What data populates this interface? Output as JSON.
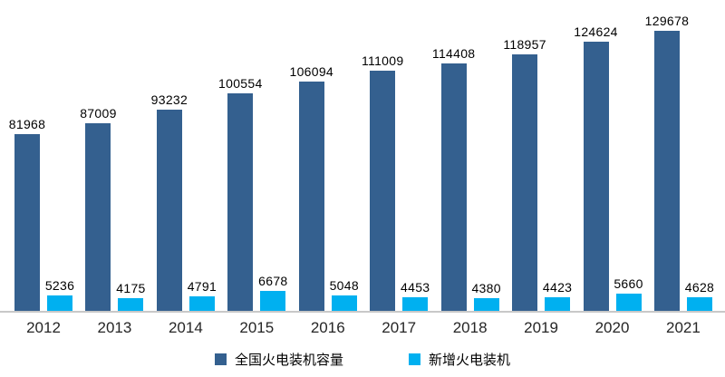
{
  "chart_data": {
    "type": "bar",
    "title": "",
    "xlabel": "",
    "ylabel": "",
    "grid": false,
    "legend_position": "bottom",
    "value_labels": true,
    "background": "#ffffff",
    "axis_line_color": "#c8c8c8",
    "value_label_color": "#000000",
    "tick_label_color": "#262626",
    "ylim_primary": [
      0,
      129678
    ],
    "categories": [
      "2012",
      "2013",
      "2014",
      "2015",
      "2016",
      "2017",
      "2018",
      "2019",
      "2020",
      "2021"
    ],
    "series": [
      {
        "name": "全国火电装机容量",
        "color": "#34608f",
        "axis": "primary",
        "values": [
          81968,
          87009,
          93232,
          100554,
          106094,
          111009,
          114408,
          118957,
          124624,
          129678
        ]
      },
      {
        "name": "新增火电装机",
        "color": "#00b0f0",
        "axis": "secondary",
        "values": [
          5236,
          4175,
          4791,
          6678,
          5048,
          4453,
          4380,
          4423,
          5660,
          4628
        ]
      }
    ]
  }
}
